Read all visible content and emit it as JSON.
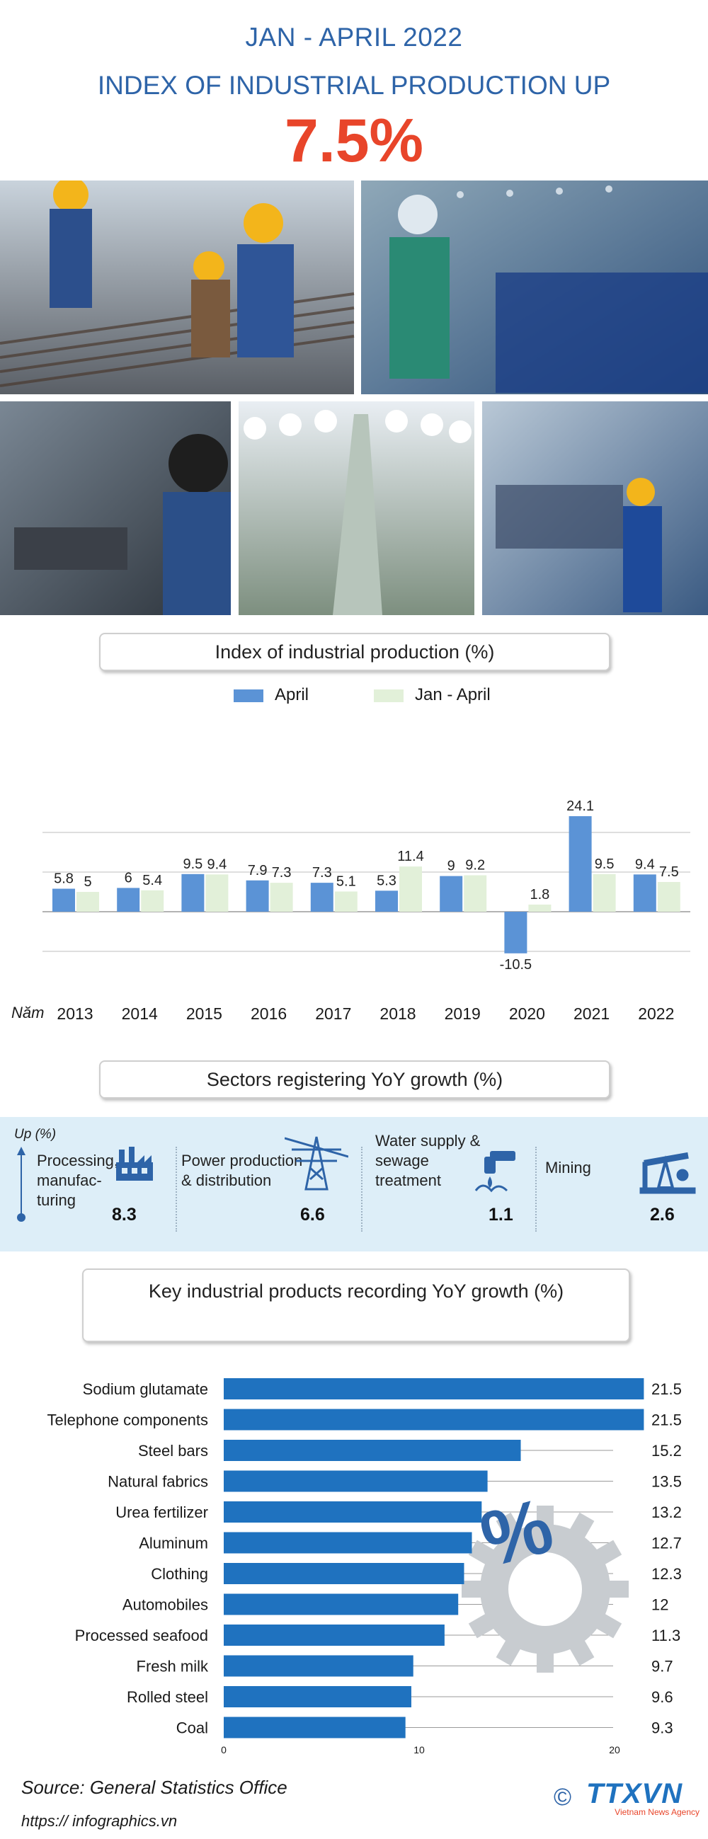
{
  "header": {
    "period": "JAN - APRIL 2022",
    "headline": "INDEX OF INDUSTRIAL PRODUCTION UP",
    "value": "7.5%"
  },
  "colors": {
    "headline_blue": "#2e64a8",
    "accent_red": "#e8452a",
    "april_bar": "#5b93d6",
    "janapril_bar": "#e2f0d9",
    "product_bar": "#1f72bf",
    "sector_band": "#ddeef8"
  },
  "section1": {
    "title": "Index of industrial production (%)"
  },
  "section2": {
    "title": "Sectors registering YoY growth  (%)"
  },
  "section3": {
    "title": "Key industrial products recording YoY growth (%)"
  },
  "chart_data": [
    {
      "type": "bar",
      "title": "Index of industrial production (%)",
      "x_prefix": "Năm",
      "categories": [
        "2013",
        "2014",
        "2015",
        "2016",
        "2017",
        "2018",
        "2019",
        "2020",
        "2021",
        "2022"
      ],
      "series": [
        {
          "name": "April",
          "color": "#5b93d6",
          "values": [
            5.8,
            6,
            9.5,
            7.9,
            7.3,
            5.3,
            9,
            -10.5,
            24.1,
            9.4
          ],
          "labels": [
            "5.8",
            "6",
            "9.5",
            "7.9",
            "7.3",
            "5.3",
            "9",
            "-10.5",
            "24.1",
            "9.4"
          ]
        },
        {
          "name": "Jan - April",
          "color": "#e2f0d9",
          "values": [
            5,
            5.4,
            9.4,
            7.3,
            5.1,
            11.4,
            9.2,
            1.8,
            9.5,
            7.5
          ],
          "labels": [
            "5",
            "5.4",
            "9.4",
            "7.3",
            "5.1",
            "11.4",
            "9.2",
            "1.8",
            "9.5",
            "7.5"
          ]
        }
      ],
      "grid": true
    },
    {
      "type": "bar",
      "orientation": "horizontal",
      "title": "Key industrial products recording YoY growth (%)",
      "categories": [
        "Sodium glutamate",
        "Telephone components",
        "Steel bars",
        "Natural fabrics",
        "Urea fertilizer",
        "Aluminum",
        "Clothing",
        "Automobiles",
        "Processed seafood",
        "Fresh milk",
        "Rolled steel",
        "Coal"
      ],
      "values": [
        21.5,
        21.5,
        15.2,
        13.5,
        13.2,
        12.7,
        12.3,
        12,
        11.3,
        9.7,
        9.6,
        9.3
      ],
      "labels": [
        "21.5",
        "21.5",
        "15.2",
        "13.5",
        "13.2",
        "12.7",
        "12.3",
        "12",
        "11.3",
        "9.7",
        "9.6",
        "9.3"
      ],
      "xlim": [
        0,
        21.5
      ],
      "xticks": [
        "0",
        "10",
        "20"
      ],
      "grid": true
    }
  ],
  "sectors": {
    "axis_label": "Up (%)",
    "items": [
      {
        "name": "Processing, manufac-turing",
        "lines": [
          "Processing,",
          "manufac-",
          "turing"
        ],
        "value": "8.3",
        "icon": "factory-icon"
      },
      {
        "name": "Power production & distribution",
        "lines": [
          "Power production",
          "& distribution"
        ],
        "value": "6.6",
        "icon": "power-pylon-icon"
      },
      {
        "name": "Water supply & sewage treatment",
        "lines": [
          "Water supply &",
          "sewage",
          "treatment"
        ],
        "value": "1.1",
        "icon": "water-tap-icon"
      },
      {
        "name": "Mining",
        "lines": [
          "Mining"
        ],
        "value": "2.6",
        "icon": "oil-pump-icon"
      }
    ]
  },
  "footer": {
    "source": "Source: General Statistics Office",
    "url": "https:// infographics.vn",
    "copyright": "©",
    "brand": "TTXVN",
    "brand_sub": "Vietnam News Agency"
  }
}
